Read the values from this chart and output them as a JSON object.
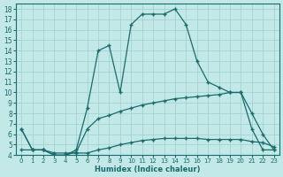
{
  "xlabel": "Humidex (Indice chaleur)",
  "bg_color": "#c2e8e8",
  "grid_color": "#9ecece",
  "line_color": "#1a6b6b",
  "xlim": [
    -0.5,
    23.5
  ],
  "ylim": [
    4,
    18.5
  ],
  "xticks": [
    0,
    1,
    2,
    3,
    4,
    5,
    6,
    7,
    8,
    9,
    10,
    11,
    12,
    13,
    14,
    15,
    16,
    17,
    18,
    19,
    20,
    21,
    22,
    23
  ],
  "yticks": [
    4,
    5,
    6,
    7,
    8,
    9,
    10,
    11,
    12,
    13,
    14,
    15,
    16,
    17,
    18
  ],
  "curve_main_x": [
    0,
    1,
    2,
    3,
    4,
    5,
    6,
    7,
    8,
    9,
    10,
    11,
    12,
    13,
    14,
    15,
    16,
    17,
    18,
    19,
    20,
    21,
    22,
    23
  ],
  "curve_main_y": [
    6.5,
    4.5,
    4.5,
    4.0,
    4.0,
    4.5,
    8.5,
    14.0,
    14.5,
    10.0,
    16.5,
    17.5,
    17.5,
    17.5,
    18.0,
    16.5,
    13.0,
    11.0,
    10.5,
    10.0,
    10.0,
    8.0,
    6.0,
    4.5
  ],
  "curve_mid_x": [
    0,
    1,
    2,
    3,
    4,
    5,
    6,
    7,
    8,
    9,
    10,
    11,
    12,
    13,
    14,
    15,
    16,
    17,
    18,
    19,
    20,
    21,
    22,
    23
  ],
  "curve_mid_y": [
    6.5,
    4.5,
    4.5,
    4.0,
    4.0,
    4.3,
    6.5,
    7.5,
    7.8,
    8.2,
    8.5,
    8.8,
    9.0,
    9.2,
    9.4,
    9.5,
    9.6,
    9.7,
    9.8,
    10.0,
    10.0,
    6.5,
    4.5,
    4.5
  ],
  "curve_low_x": [
    0,
    1,
    2,
    3,
    4,
    5,
    6,
    7,
    8,
    9,
    10,
    11,
    12,
    13,
    14,
    15,
    16,
    17,
    18,
    19,
    20,
    21,
    22,
    23
  ],
  "curve_low_y": [
    4.5,
    4.5,
    4.5,
    4.2,
    4.2,
    4.2,
    4.2,
    4.5,
    4.7,
    5.0,
    5.2,
    5.4,
    5.5,
    5.6,
    5.6,
    5.6,
    5.6,
    5.5,
    5.5,
    5.5,
    5.5,
    5.3,
    5.2,
    4.8
  ]
}
